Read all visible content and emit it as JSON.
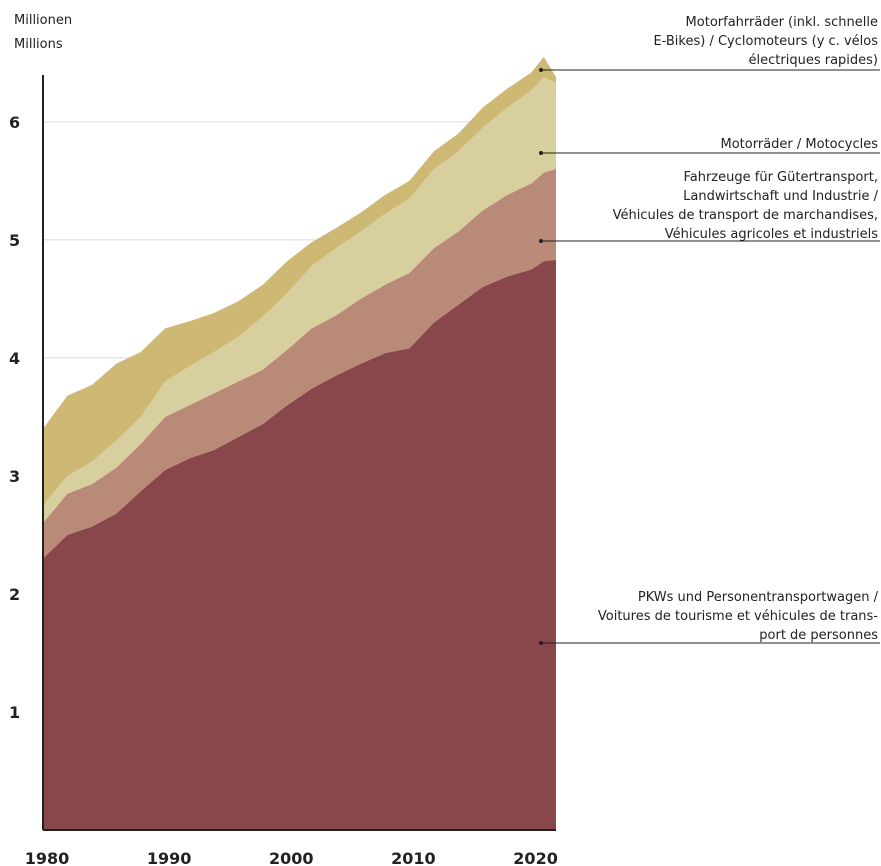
{
  "chart_data": {
    "type": "stacked_area",
    "y_axis_label": [
      "Millionen",
      "Millions"
    ],
    "x": [
      1980,
      1982,
      1984,
      1986,
      1988,
      1990,
      1992,
      1994,
      1996,
      1998,
      2000,
      2002,
      2004,
      2006,
      2008,
      2010,
      2012,
      2014,
      2016,
      2018,
      2020,
      2021,
      2022
    ],
    "xlim": [
      1980,
      2022
    ],
    "xticks": [
      1980,
      1990,
      2000,
      2010,
      2020
    ],
    "ylim": [
      0,
      6.6
    ],
    "yticks": [
      1,
      2,
      3,
      4,
      5,
      6
    ],
    "grid": true,
    "series": [
      {
        "name": "PKWs und Personentransportwagen /\nVoitures de tourisme et véhicules de trans-\nport de personnes",
        "color": "#8a474b",
        "values": [
          2.3,
          2.5,
          2.57,
          2.68,
          2.87,
          3.05,
          3.15,
          3.22,
          3.33,
          3.44,
          3.6,
          3.74,
          3.85,
          3.95,
          4.04,
          4.08,
          4.3,
          4.45,
          4.6,
          4.69,
          4.75,
          4.82,
          4.83
        ]
      },
      {
        "name": "Fahrzeuge für Gütertransport,\nLandwirtschaft und Industrie /\nVéhicules de transport de marchandises,\nVéhicules agricoles et industriels",
        "color": "#b98a77",
        "values": [
          0.3,
          0.35,
          0.36,
          0.39,
          0.4,
          0.45,
          0.45,
          0.48,
          0.47,
          0.46,
          0.47,
          0.51,
          0.51,
          0.55,
          0.58,
          0.64,
          0.63,
          0.62,
          0.65,
          0.69,
          0.73,
          0.75,
          0.77
        ]
      },
      {
        "name": "Motorräder / Motocycles",
        "color": "#d8cf9f",
        "values": [
          0.15,
          0.15,
          0.19,
          0.23,
          0.23,
          0.3,
          0.33,
          0.35,
          0.38,
          0.45,
          0.48,
          0.53,
          0.57,
          0.57,
          0.6,
          0.63,
          0.67,
          0.68,
          0.7,
          0.74,
          0.79,
          0.81,
          0.73
        ]
      },
      {
        "name": "Motorfahrräder (inkl. schnelle\nE-Bikes) / Cyclomoteurs (y c. vélos\nélectriques rapides)",
        "color": "#cdb874",
        "values": [
          0.65,
          0.68,
          0.65,
          0.65,
          0.55,
          0.45,
          0.38,
          0.33,
          0.3,
          0.27,
          0.27,
          0.2,
          0.17,
          0.16,
          0.16,
          0.15,
          0.15,
          0.15,
          0.17,
          0.16,
          0.15,
          0.17,
          0.05
        ]
      }
    ]
  }
}
